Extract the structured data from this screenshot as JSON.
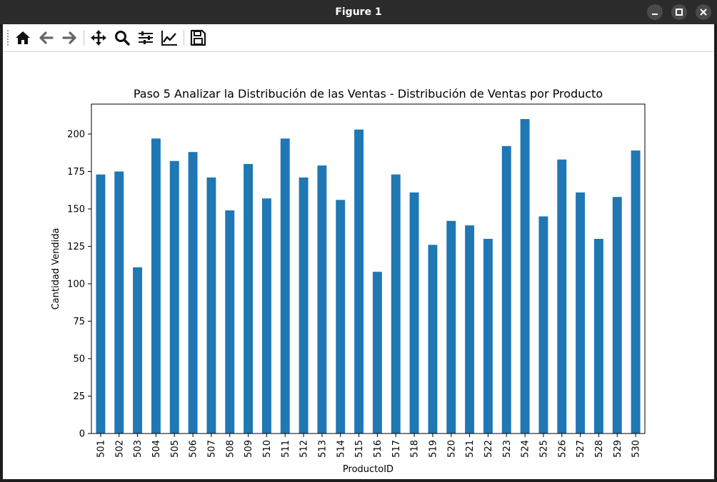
{
  "window": {
    "title": "Figure 1"
  },
  "toolbar": {
    "tools": [
      {
        "name": "home",
        "icon": "home-icon"
      },
      {
        "name": "back",
        "icon": "arrow-left-icon"
      },
      {
        "name": "forward",
        "icon": "arrow-right-icon"
      },
      {
        "name": "pan",
        "icon": "move-icon"
      },
      {
        "name": "zoom",
        "icon": "magnifier-icon"
      },
      {
        "name": "subplots",
        "icon": "sliders-icon"
      },
      {
        "name": "edit-axes",
        "icon": "line-chart-icon"
      },
      {
        "name": "save",
        "icon": "floppy-disk-icon"
      }
    ]
  },
  "chart_data": {
    "type": "bar",
    "title": "Paso 5 Analizar la Distribución de las Ventas - Distribución de Ventas por Producto",
    "xlabel": "ProductoID",
    "ylabel": "Cantidad Vendida",
    "ylim": [
      0,
      220
    ],
    "yticks": [
      0,
      25,
      50,
      75,
      100,
      125,
      150,
      175,
      200
    ],
    "grid": false,
    "legend": "none",
    "color": "#1f77b4",
    "categories": [
      "501",
      "502",
      "503",
      "504",
      "505",
      "506",
      "507",
      "508",
      "509",
      "510",
      "511",
      "512",
      "513",
      "514",
      "515",
      "516",
      "517",
      "518",
      "519",
      "520",
      "521",
      "522",
      "523",
      "524",
      "525",
      "526",
      "527",
      "528",
      "529",
      "530"
    ],
    "values": [
      173,
      175,
      111,
      197,
      182,
      188,
      171,
      149,
      180,
      157,
      197,
      171,
      179,
      156,
      203,
      108,
      173,
      161,
      126,
      142,
      139,
      130,
      192,
      210,
      145,
      183,
      161,
      130,
      158,
      189
    ]
  }
}
